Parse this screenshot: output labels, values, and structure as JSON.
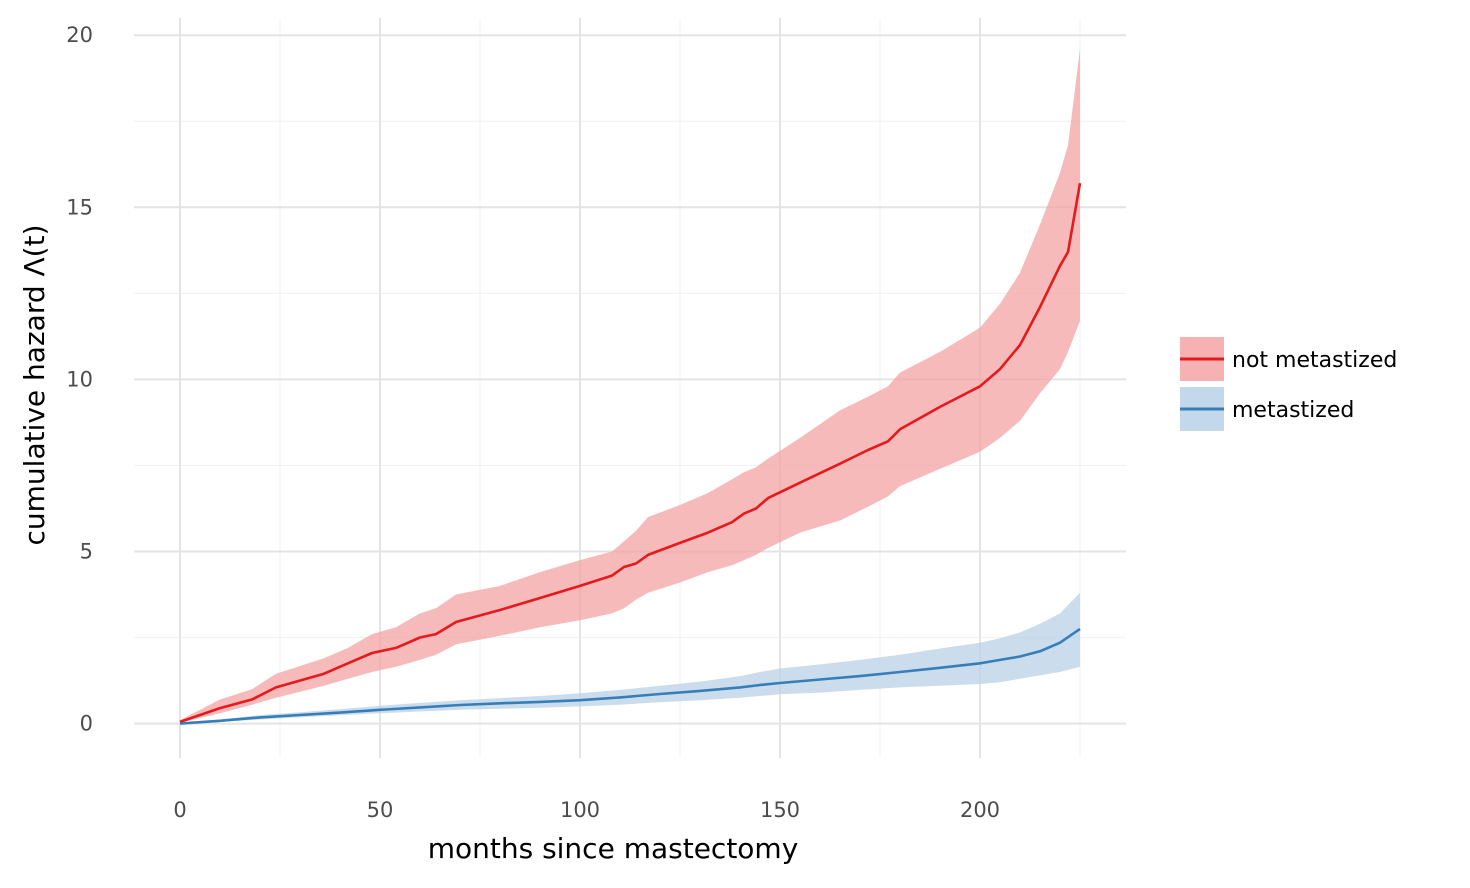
{
  "chart_data": {
    "type": "line",
    "xlabel": "months since mastectomy",
    "ylabel": "cumulative hazard Λ(t)",
    "xlim": [
      -11.5,
      236.5
    ],
    "ylim": [
      -1.0,
      20.5
    ],
    "x_ticks": [
      0,
      50,
      100,
      150,
      200
    ],
    "y_ticks": [
      0,
      5,
      10,
      15,
      20
    ],
    "x_tick_labels": [
      "0",
      "50",
      "100",
      "150",
      "200"
    ],
    "y_tick_labels": [
      "0",
      "5",
      "10",
      "15",
      "20"
    ],
    "grid": true,
    "legend_position": "right",
    "series": [
      {
        "name": "not metastized",
        "color": "#e41a1c",
        "band_color": "#f4a3a4",
        "x": [
          0,
          10,
          18,
          24,
          36,
          42,
          48,
          54,
          60,
          64,
          69,
          80,
          90,
          100,
          108,
          111,
          114,
          117,
          125,
          132,
          138,
          141,
          144,
          147,
          155,
          165,
          172,
          177,
          180,
          190,
          200,
          205,
          210,
          215,
          220,
          222,
          225
        ],
        "y": [
          0.05,
          0.45,
          0.7,
          1.05,
          1.45,
          1.75,
          2.05,
          2.2,
          2.5,
          2.6,
          2.95,
          3.3,
          3.65,
          4.0,
          4.3,
          4.55,
          4.65,
          4.9,
          5.25,
          5.55,
          5.85,
          6.1,
          6.25,
          6.55,
          7.0,
          7.55,
          7.95,
          8.2,
          8.55,
          9.2,
          9.8,
          10.3,
          11.0,
          12.1,
          13.3,
          13.7,
          15.7
        ],
        "lower": [
          0.02,
          0.3,
          0.55,
          0.75,
          1.1,
          1.3,
          1.5,
          1.65,
          1.85,
          2.0,
          2.3,
          2.55,
          2.8,
          3.0,
          3.2,
          3.35,
          3.6,
          3.8,
          4.1,
          4.4,
          4.6,
          4.75,
          4.9,
          5.1,
          5.55,
          5.9,
          6.3,
          6.6,
          6.9,
          7.4,
          7.9,
          8.3,
          8.8,
          9.6,
          10.3,
          10.8,
          11.7
        ],
        "upper": [
          0.1,
          0.7,
          1.0,
          1.45,
          1.9,
          2.2,
          2.6,
          2.8,
          3.2,
          3.35,
          3.75,
          4.0,
          4.4,
          4.75,
          5.0,
          5.3,
          5.6,
          6.0,
          6.35,
          6.7,
          7.1,
          7.3,
          7.45,
          7.7,
          8.3,
          9.1,
          9.5,
          9.8,
          10.2,
          10.8,
          11.5,
          12.2,
          13.1,
          14.5,
          16.0,
          16.8,
          19.6
        ]
      },
      {
        "name": "metastized",
        "color": "#377eb8",
        "band_color": "#b9d1e7",
        "x": [
          0,
          10,
          20,
          30,
          40,
          50,
          60,
          70,
          80,
          90,
          100,
          110,
          120,
          130,
          140,
          145,
          150,
          160,
          170,
          180,
          190,
          200,
          205,
          210,
          215,
          220,
          225
        ],
        "y": [
          0.0,
          0.08,
          0.18,
          0.25,
          0.32,
          0.4,
          0.47,
          0.54,
          0.59,
          0.63,
          0.68,
          0.76,
          0.86,
          0.95,
          1.05,
          1.12,
          1.18,
          1.28,
          1.38,
          1.5,
          1.62,
          1.75,
          1.85,
          1.95,
          2.1,
          2.35,
          2.75
        ],
        "lower": [
          0.0,
          0.05,
          0.12,
          0.18,
          0.24,
          0.3,
          0.35,
          0.4,
          0.43,
          0.46,
          0.5,
          0.55,
          0.62,
          0.68,
          0.75,
          0.8,
          0.85,
          0.9,
          0.98,
          1.05,
          1.1,
          1.15,
          1.2,
          1.3,
          1.4,
          1.5,
          1.65
        ],
        "upper": [
          0.03,
          0.12,
          0.25,
          0.33,
          0.42,
          0.52,
          0.6,
          0.68,
          0.74,
          0.8,
          0.88,
          0.98,
          1.1,
          1.22,
          1.38,
          1.5,
          1.6,
          1.72,
          1.85,
          2.0,
          2.18,
          2.35,
          2.48,
          2.65,
          2.9,
          3.2,
          3.8
        ]
      }
    ]
  }
}
